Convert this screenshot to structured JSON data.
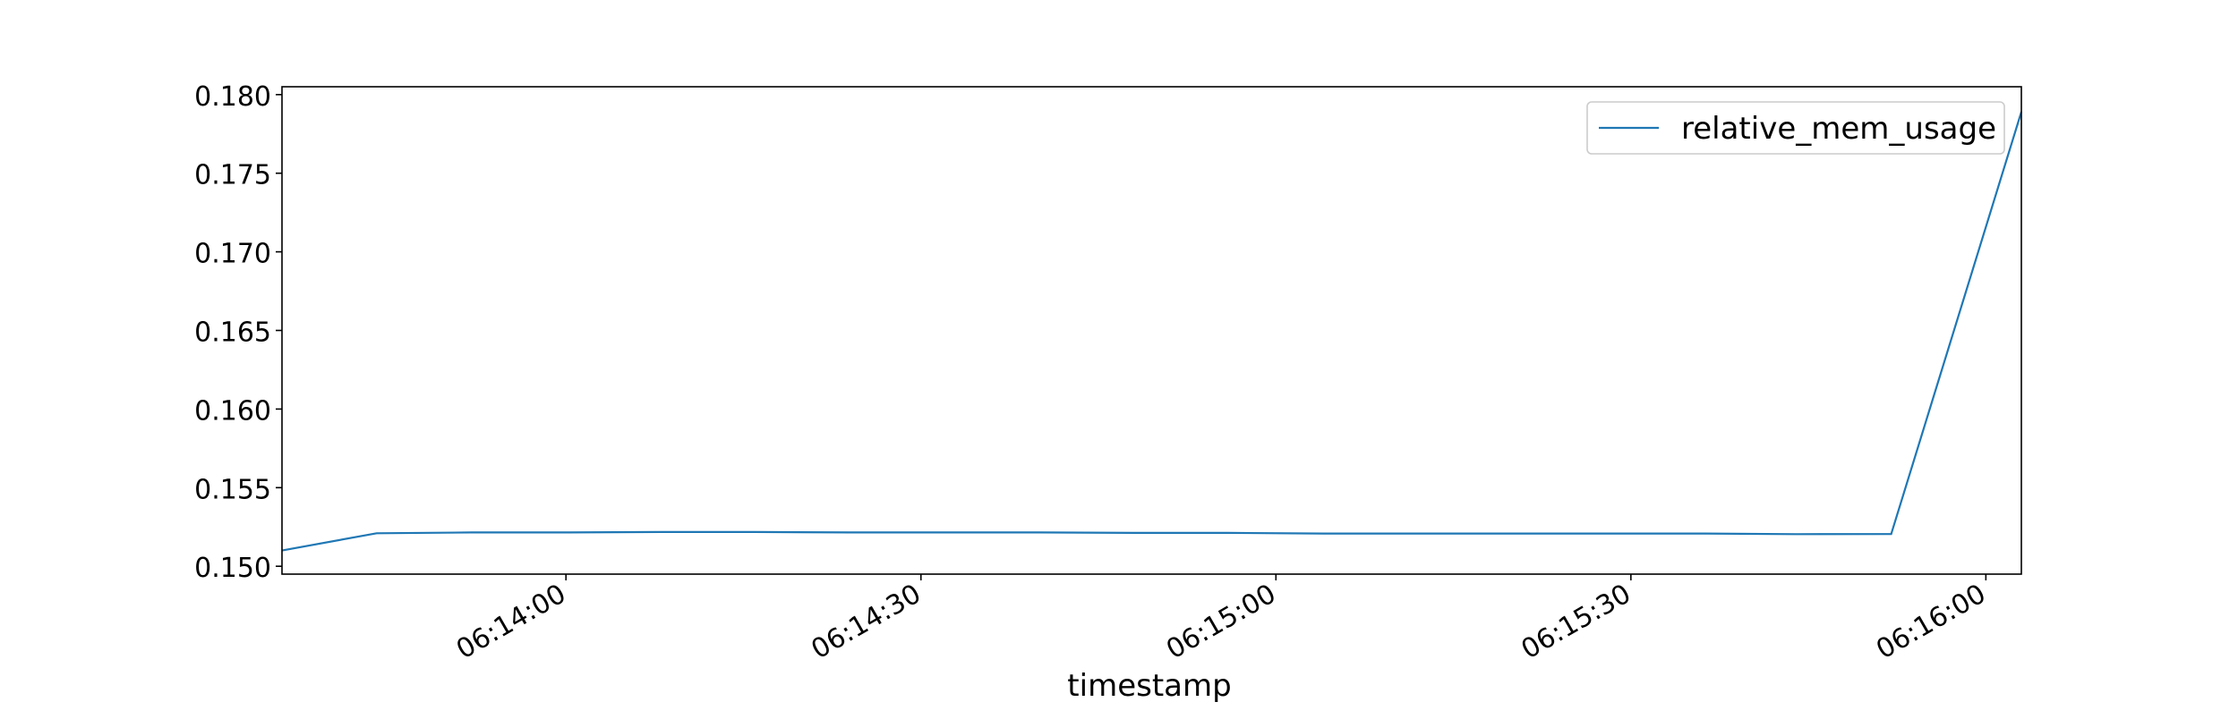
{
  "chart_data": {
    "type": "line",
    "title": "",
    "xlabel": "timestamp",
    "ylabel": "",
    "x_type": "time",
    "xlim": [
      "06:13:36",
      "06:16:03"
    ],
    "ylim": [
      0.1495,
      0.1805
    ],
    "x_ticks": [
      "06:14:00",
      "06:14:30",
      "06:15:00",
      "06:15:30",
      "06:16:00"
    ],
    "y_ticks": [
      0.15,
      0.155,
      0.16,
      0.165,
      0.17,
      0.175,
      0.18
    ],
    "y_tick_labels": [
      "0.150",
      "0.155",
      "0.160",
      "0.165",
      "0.170",
      "0.175",
      "0.180"
    ],
    "grid": false,
    "legend_position": "top-right",
    "series": [
      {
        "name": "relative_mem_usage",
        "color": "#1f77b4",
        "x": [
          "06:13:36",
          "06:13:44",
          "06:13:52",
          "06:14:00",
          "06:14:08",
          "06:14:16",
          "06:14:24",
          "06:14:32",
          "06:14:40",
          "06:14:48",
          "06:14:56",
          "06:15:04",
          "06:15:12",
          "06:15:20",
          "06:15:28",
          "06:15:36",
          "06:15:44",
          "06:15:52",
          "06:16:03"
        ],
        "values": [
          0.151,
          0.1521,
          0.15215,
          0.15215,
          0.15218,
          0.15218,
          0.15215,
          0.15215,
          0.15215,
          0.15212,
          0.15212,
          0.15208,
          0.15208,
          0.15208,
          0.15208,
          0.15208,
          0.15204,
          0.15205,
          0.1789
        ]
      }
    ]
  }
}
